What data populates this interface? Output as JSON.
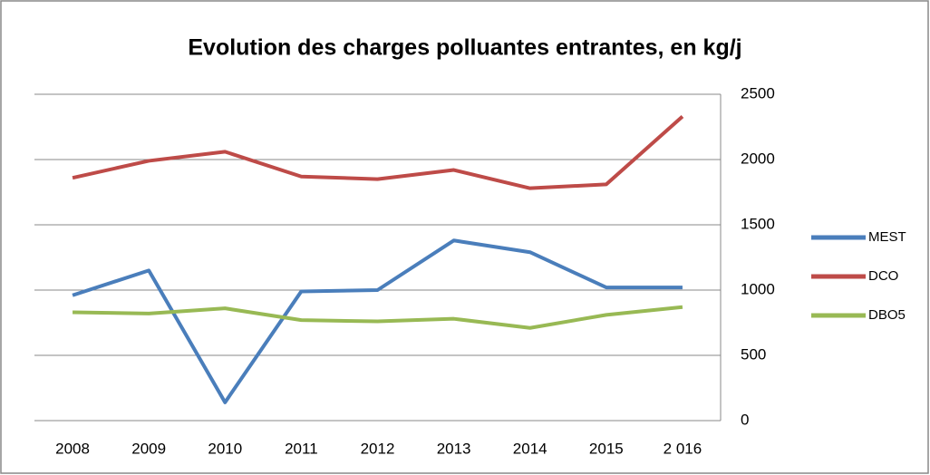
{
  "chart_data": {
    "type": "line",
    "title": "Evolution des charges polluantes entrantes,  en kg/j",
    "categories": [
      "2008",
      "2009",
      "2010",
      "2011",
      "2012",
      "2013",
      "2014",
      "2015",
      "2 016"
    ],
    "series": [
      {
        "name": "MEST",
        "color": "#4a7ebb",
        "values": [
          960,
          1150,
          140,
          990,
          1000,
          1380,
          1290,
          1020,
          1020
        ]
      },
      {
        "name": "DCO",
        "color": "#be4b48",
        "values": [
          1860,
          1990,
          2060,
          1870,
          1850,
          1920,
          1780,
          1810,
          2330
        ]
      },
      {
        "name": "DBO5",
        "color": "#98b954",
        "values": [
          830,
          820,
          860,
          770,
          760,
          780,
          710,
          810,
          870
        ]
      }
    ],
    "ylim": [
      0,
      2500
    ],
    "yticks": [
      0,
      500,
      1000,
      1500,
      2000,
      2500
    ],
    "y_axis_side": "right",
    "grid": true,
    "legend": "right"
  }
}
